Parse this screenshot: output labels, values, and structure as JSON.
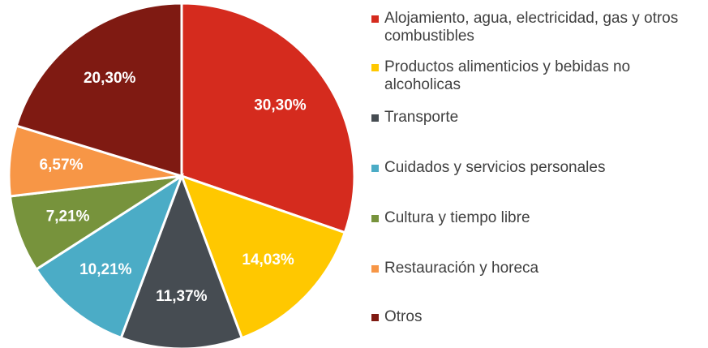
{
  "chart_data": {
    "type": "pie",
    "categories": [
      "Alojamiento, agua, electricidad, gas y otros combustibles",
      "Productos alimenticios y bebidas no alcoholicas",
      "Transporte",
      "Cuidados y servicios personales",
      "Cultura y tiempo libre",
      "Restauración y horeca",
      "Otros"
    ],
    "values": [
      30.3,
      14.03,
      11.37,
      10.21,
      7.21,
      6.57,
      20.3
    ],
    "value_labels": [
      "30,30%",
      "14,03%",
      "11,37%",
      "10,21%",
      "7,21%",
      "6,57%",
      "20,30%"
    ],
    "colors": [
      "#d52b1e",
      "#ffc800",
      "#464c52",
      "#4bacc6",
      "#77933c",
      "#f79646",
      "#7f1a12"
    ],
    "legend": "right"
  }
}
